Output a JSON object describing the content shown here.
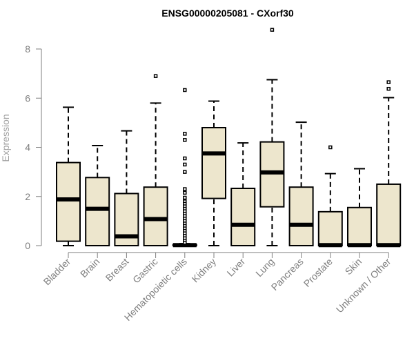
{
  "chart_data": {
    "type": "boxplot",
    "title": "ENSG00000205081 - CXorf30",
    "xlabel": "",
    "ylabel": "Expression",
    "ylim": [
      0,
      8
    ],
    "yticks": [
      "0",
      "2",
      "4",
      "6",
      "8"
    ],
    "colors": {
      "box_fill": "#ede6cd",
      "stroke": "#000000",
      "axis": "#7f7f7f"
    },
    "categories": [
      {
        "name": "Bladder",
        "whisker_low": 0,
        "q1": 0.18,
        "median": 1.88,
        "q3": 3.38,
        "whisker_high": 5.63,
        "outliers": []
      },
      {
        "name": "Brain",
        "whisker_low": 0,
        "q1": 0.0,
        "median": 1.5,
        "q3": 2.77,
        "whisker_high": 4.07,
        "outliers": []
      },
      {
        "name": "Breast",
        "whisker_low": 0,
        "q1": 0.0,
        "median": 0.38,
        "q3": 2.12,
        "whisker_high": 4.67,
        "outliers": []
      },
      {
        "name": "Gastric",
        "whisker_low": 0,
        "q1": 0.0,
        "median": 1.08,
        "q3": 2.38,
        "whisker_high": 5.8,
        "outliers": [
          6.9
        ]
      },
      {
        "name": "Hematopoietic cells",
        "whisker_low": 0,
        "q1": 0.0,
        "median": 0.02,
        "q3": 0.04,
        "whisker_high": 0.08,
        "outliers": [
          6.33,
          4.55,
          4.3,
          3.55,
          3.3,
          3.0,
          2.3,
          2.15,
          1.95,
          1.8,
          1.7,
          1.6,
          1.5,
          1.4,
          1.3,
          1.2,
          1.1,
          1.0,
          0.9,
          0.8,
          0.7,
          0.6,
          0.5,
          0.4,
          0.3,
          0.2,
          0.12
        ]
      },
      {
        "name": "Kidney",
        "whisker_low": 0,
        "q1": 1.92,
        "median": 3.75,
        "q3": 4.8,
        "whisker_high": 5.88,
        "outliers": []
      },
      {
        "name": "Liver",
        "whisker_low": 0,
        "q1": 0.0,
        "median": 0.85,
        "q3": 2.33,
        "whisker_high": 4.18,
        "outliers": []
      },
      {
        "name": "Lung",
        "whisker_low": 0,
        "q1": 1.58,
        "median": 2.98,
        "q3": 4.22,
        "whisker_high": 6.75,
        "outliers": [
          8.78
        ]
      },
      {
        "name": "Pancreas",
        "whisker_low": 0,
        "q1": 0.0,
        "median": 0.85,
        "q3": 2.38,
        "whisker_high": 5.02,
        "outliers": []
      },
      {
        "name": "Prostate",
        "whisker_low": 0,
        "q1": 0.0,
        "median": 0.02,
        "q3": 1.38,
        "whisker_high": 2.93,
        "outliers": [
          4.0
        ]
      },
      {
        "name": "Skin",
        "whisker_low": 0,
        "q1": 0.0,
        "median": 0.02,
        "q3": 1.55,
        "whisker_high": 3.13,
        "outliers": []
      },
      {
        "name": "Unknown / Other",
        "whisker_low": 0,
        "q1": 0.0,
        "median": 0.02,
        "q3": 2.5,
        "whisker_high": 6.02,
        "outliers": [
          6.38,
          6.65
        ]
      }
    ]
  }
}
